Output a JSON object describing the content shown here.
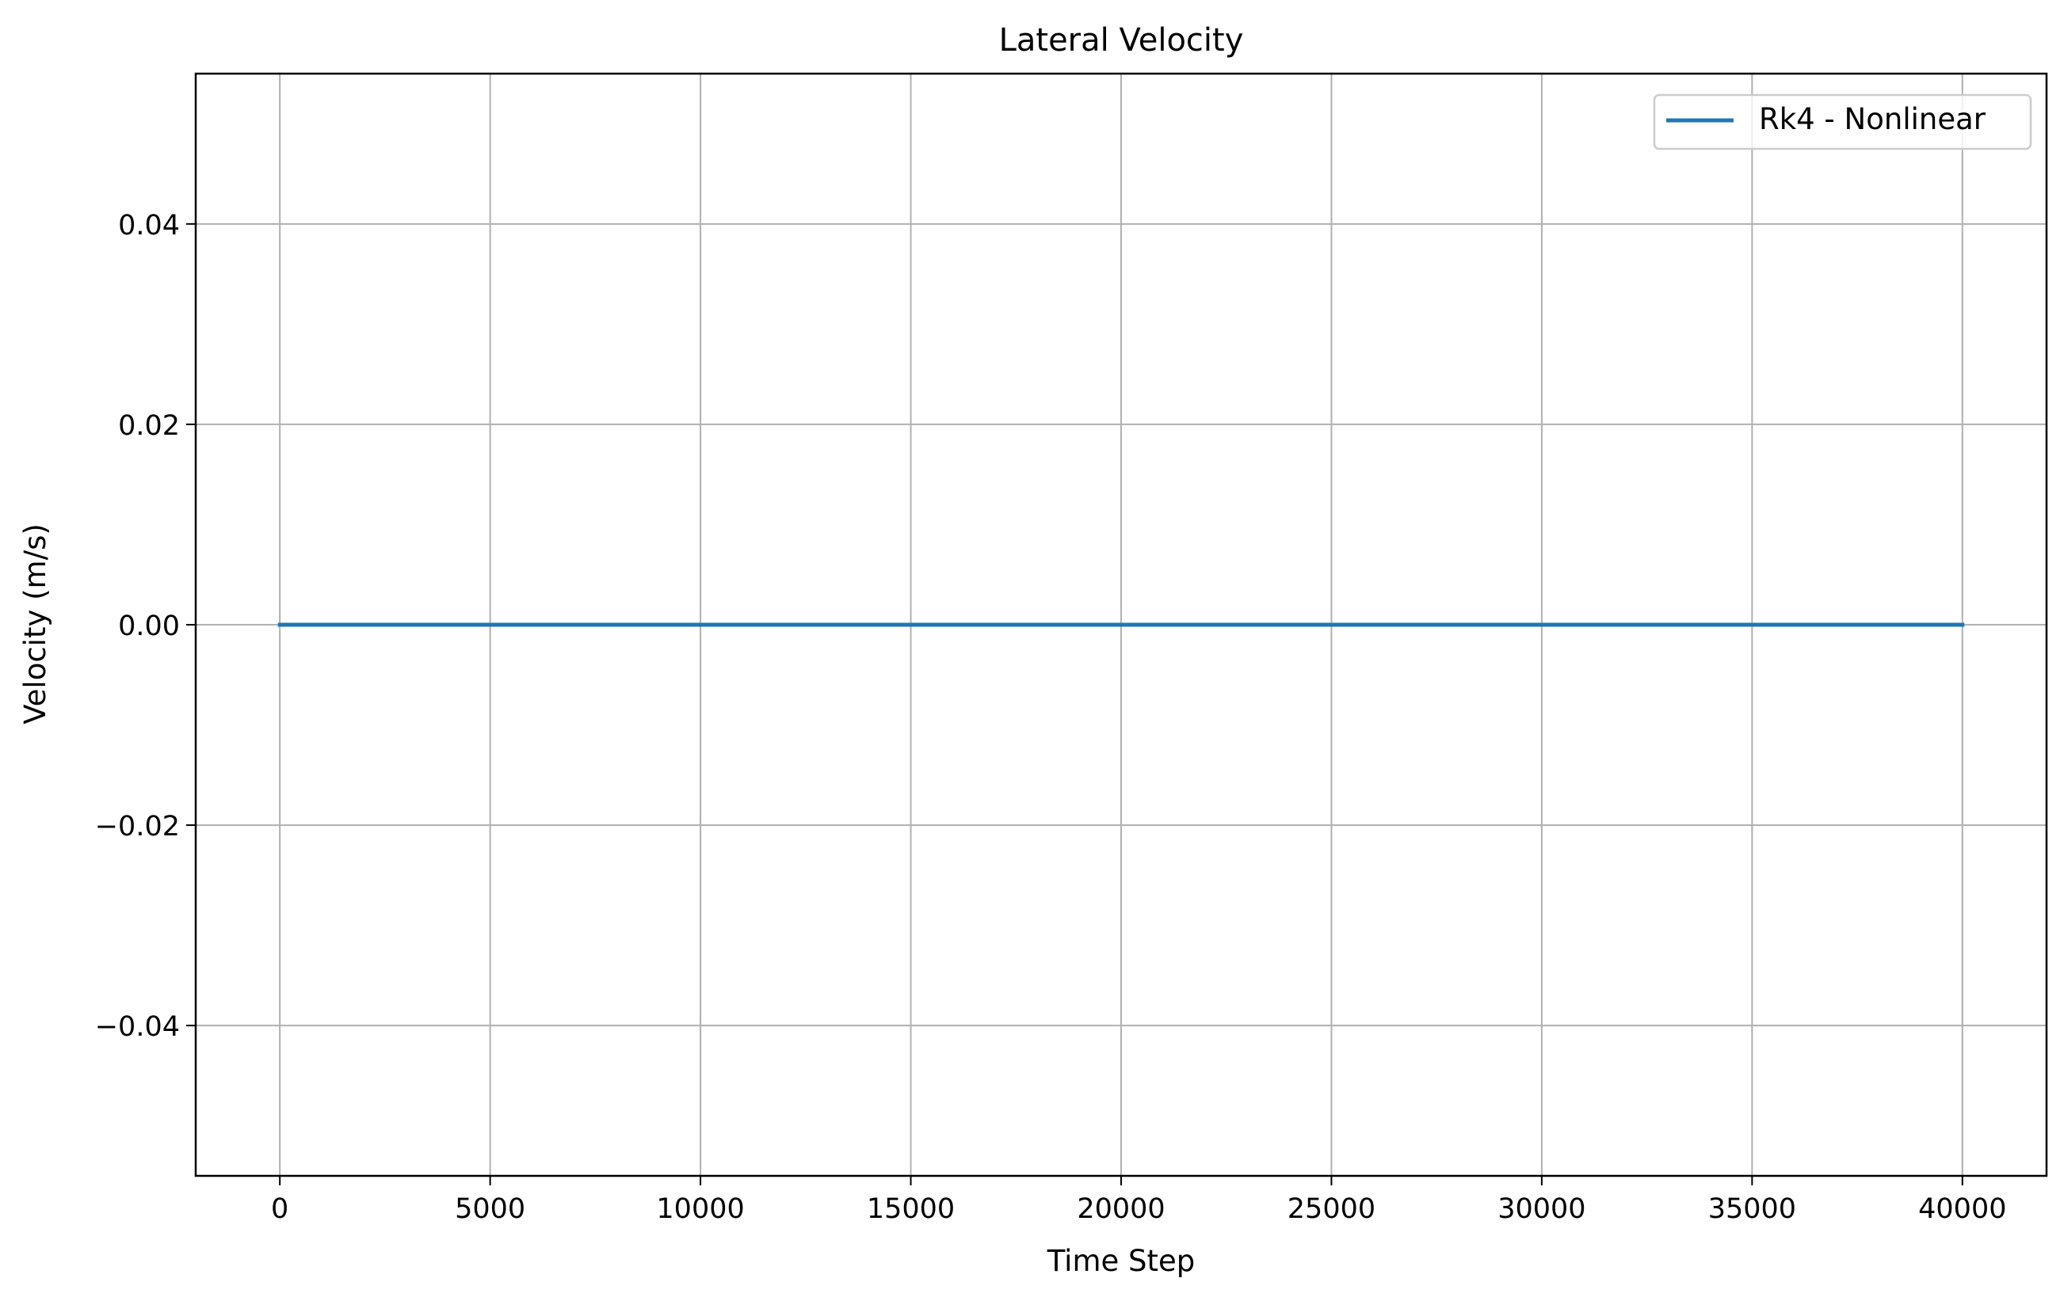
{
  "chart_data": {
    "type": "line",
    "title": "Lateral Velocity",
    "xlabel": "Time Step",
    "ylabel": "Velocity (m/s)",
    "xlim": [
      -2000,
      42000
    ],
    "ylim": [
      -0.055,
      0.055
    ],
    "xticks": [
      0,
      5000,
      10000,
      15000,
      20000,
      25000,
      30000,
      35000,
      40000
    ],
    "xtick_labels": [
      "0",
      "5000",
      "10000",
      "15000",
      "20000",
      "25000",
      "30000",
      "35000",
      "40000"
    ],
    "yticks": [
      -0.04,
      -0.02,
      0.0,
      0.02,
      0.04
    ],
    "ytick_labels": [
      "−0.04",
      "−0.02",
      "0.00",
      "0.02",
      "0.04"
    ],
    "grid": true,
    "legend_position": "top-right",
    "series": [
      {
        "name": "Rk4 - Nonlinear",
        "color": "#1f77b4",
        "x": [
          0,
          40000
        ],
        "y": [
          0.0,
          0.0
        ]
      }
    ]
  }
}
